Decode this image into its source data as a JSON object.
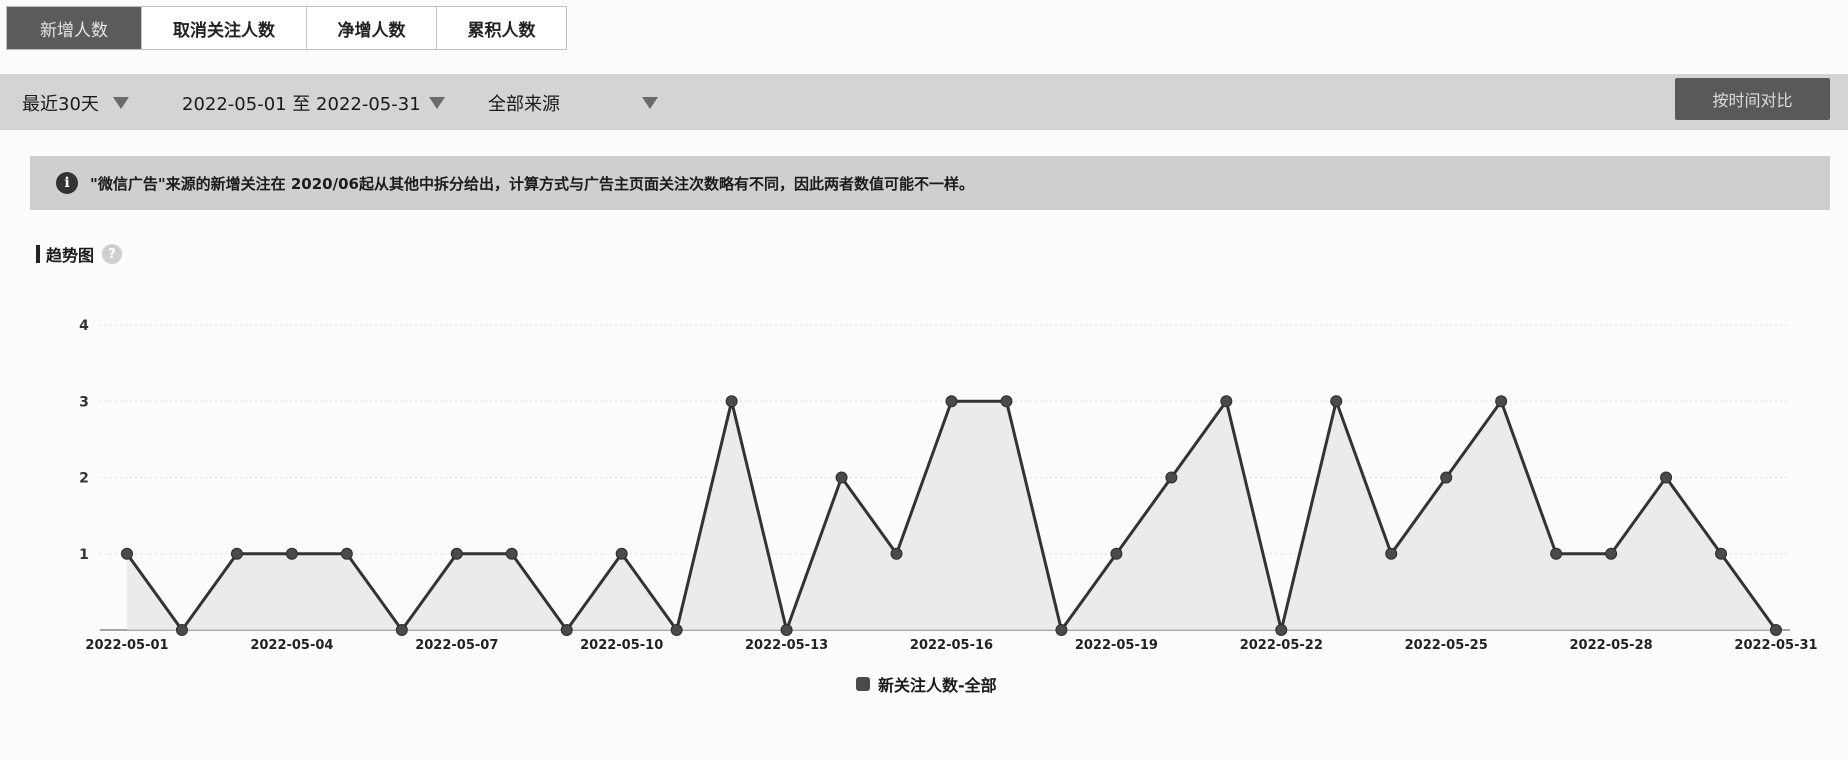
{
  "tabs": [
    "新增人数",
    "取消关注人数",
    "净增人数",
    "累积人数"
  ],
  "filters": {
    "range": "最近30天",
    "date_range": "2022-05-01 至 2022-05-31",
    "source": "全部来源"
  },
  "compare_button": "按时间对比",
  "notice": "\"微信广告\"来源的新增关注在 2020/06起从其他中拆分给出，计算方式与广告主页面关注次数略有不同，因此两者数值可能不一样。",
  "section_title": "趋势图",
  "colors": {
    "line": "#333333",
    "area": "#e5e5e5",
    "active_tab": "#595b5d"
  },
  "chart_data": {
    "type": "area",
    "title": "",
    "x": [
      "2022-05-01",
      "2022-05-02",
      "2022-05-03",
      "2022-05-04",
      "2022-05-05",
      "2022-05-06",
      "2022-05-07",
      "2022-05-08",
      "2022-05-09",
      "2022-05-10",
      "2022-05-11",
      "2022-05-12",
      "2022-05-13",
      "2022-05-14",
      "2022-05-15",
      "2022-05-16",
      "2022-05-17",
      "2022-05-18",
      "2022-05-19",
      "2022-05-20",
      "2022-05-21",
      "2022-05-22",
      "2022-05-23",
      "2022-05-24",
      "2022-05-25",
      "2022-05-26",
      "2022-05-27",
      "2022-05-28",
      "2022-05-29",
      "2022-05-30",
      "2022-05-31"
    ],
    "x_tick_labels": [
      "2022-05-01",
      "2022-05-04",
      "2022-05-07",
      "2022-05-10",
      "2022-05-13",
      "2022-05-16",
      "2022-05-19",
      "2022-05-22",
      "2022-05-25",
      "2022-05-28",
      "2022-05-31"
    ],
    "series": [
      {
        "name": "新关注人数-全部",
        "values": [
          1,
          0,
          1,
          1,
          1,
          0,
          1,
          1,
          0,
          1,
          0,
          3,
          0,
          2,
          1,
          3,
          3,
          0,
          1,
          2,
          3,
          0,
          3,
          1,
          2,
          3,
          1,
          1,
          2,
          1,
          0
        ]
      }
    ],
    "y_ticks": [
      1,
      2,
      3,
      4
    ],
    "ylim": [
      0,
      4
    ],
    "grid": true,
    "legend": "bottom-center"
  }
}
